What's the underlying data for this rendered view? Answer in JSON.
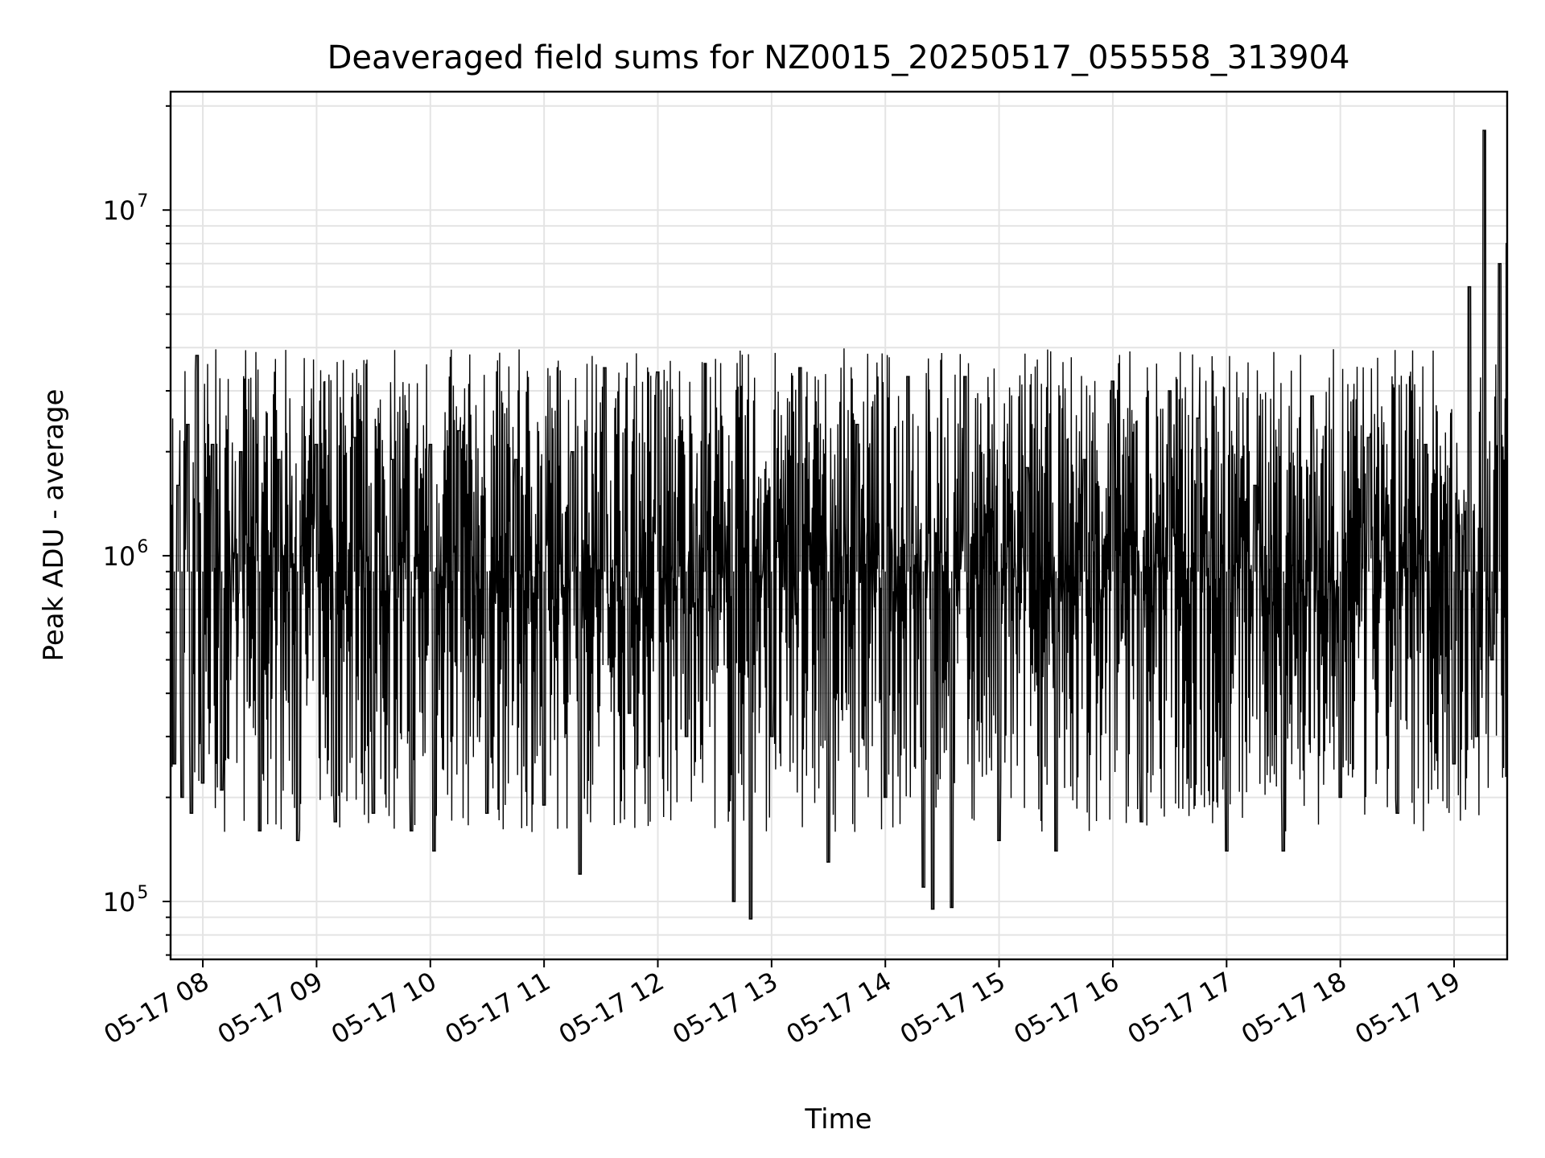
{
  "chart_data": {
    "type": "line",
    "title": "Deaveraged field sums for NZ0015_20250517_055558_313904",
    "xlabel": "Time",
    "ylabel": "Peak ADU - average",
    "y_scale": "log",
    "grid": true,
    "grid_minor": true,
    "line_color": "#000000",
    "xlim": [
      "2025-05-17 07:43",
      "2025-05-17 19:28"
    ],
    "ylim": [
      68000,
      22000000
    ],
    "x_ticks": [
      {
        "value": "2025-05-17 08:00",
        "label": "05-17 08"
      },
      {
        "value": "2025-05-17 09:00",
        "label": "05-17 09"
      },
      {
        "value": "2025-05-17 10:00",
        "label": "05-17 10"
      },
      {
        "value": "2025-05-17 11:00",
        "label": "05-17 11"
      },
      {
        "value": "2025-05-17 12:00",
        "label": "05-17 12"
      },
      {
        "value": "2025-05-17 13:00",
        "label": "05-17 13"
      },
      {
        "value": "2025-05-17 14:00",
        "label": "05-17 14"
      },
      {
        "value": "2025-05-17 15:00",
        "label": "05-17 15"
      },
      {
        "value": "2025-05-17 16:00",
        "label": "05-17 16"
      },
      {
        "value": "2025-05-17 17:00",
        "label": "05-17 17"
      },
      {
        "value": "2025-05-17 18:00",
        "label": "05-17 18"
      },
      {
        "value": "2025-05-17 19:00",
        "label": "05-17 19"
      }
    ],
    "y_ticks": [
      {
        "value": 100000,
        "base": "10",
        "exp": "5"
      },
      {
        "value": 1000000,
        "base": "10",
        "exp": "6"
      },
      {
        "value": 10000000,
        "base": "10",
        "exp": "7"
      }
    ],
    "series": [
      {
        "values": [
          [
            "2025-05-17 07:43",
            1400000
          ],
          [
            "2025-05-17 07:45",
            250000
          ],
          [
            "2025-05-17 07:47",
            1600000
          ],
          [
            "2025-05-17 07:49",
            200000
          ],
          [
            "2025-05-17 07:52",
            2400000
          ],
          [
            "2025-05-17 07:54",
            180000
          ],
          [
            "2025-05-17 07:57",
            3800000
          ],
          [
            "2025-05-17 08:00",
            220000
          ],
          [
            "2025-05-17 08:05",
            2100000
          ],
          [
            "2025-05-17 08:10",
            210000
          ],
          [
            "2025-05-17 08:20",
            2000000
          ],
          [
            "2025-05-17 08:30",
            160000
          ],
          [
            "2025-05-17 08:40",
            1900000
          ],
          [
            "2025-05-17 08:50",
            150000
          ],
          [
            "2025-05-17 09:00",
            2100000
          ],
          [
            "2025-05-17 09:10",
            170000
          ],
          [
            "2025-05-17 09:20",
            2200000
          ],
          [
            "2025-05-17 09:30",
            180000
          ],
          [
            "2025-05-17 09:40",
            1900000
          ],
          [
            "2025-05-17 09:50",
            160000
          ],
          [
            "2025-05-17 10:00",
            2100000
          ],
          [
            "2025-05-17 10:02",
            140000
          ],
          [
            "2025-05-17 10:15",
            2300000
          ],
          [
            "2025-05-17 10:30",
            180000
          ],
          [
            "2025-05-17 10:45",
            1900000
          ],
          [
            "2025-05-17 11:00",
            190000
          ],
          [
            "2025-05-17 11:15",
            2000000
          ],
          [
            "2025-05-17 11:19",
            120000
          ],
          [
            "2025-05-17 11:32",
            3500000
          ],
          [
            "2025-05-17 11:45",
            350000
          ],
          [
            "2025-05-17 12:00",
            3400000
          ],
          [
            "2025-05-17 12:15",
            300000
          ],
          [
            "2025-05-17 12:25",
            3600000
          ],
          [
            "2025-05-17 12:40",
            100000
          ],
          [
            "2025-05-17 12:49",
            89000
          ],
          [
            "2025-05-17 13:00",
            300000
          ],
          [
            "2025-05-17 13:15",
            3500000
          ],
          [
            "2025-05-17 13:30",
            130000
          ],
          [
            "2025-05-17 13:45",
            2400000
          ],
          [
            "2025-05-17 14:00",
            200000
          ],
          [
            "2025-05-17 14:12",
            3300000
          ],
          [
            "2025-05-17 14:20",
            110000
          ],
          [
            "2025-05-17 14:25",
            95000
          ],
          [
            "2025-05-17 14:35",
            96000
          ],
          [
            "2025-05-17 14:42",
            3300000
          ],
          [
            "2025-05-17 15:00",
            150000
          ],
          [
            "2025-05-17 15:15",
            1800000
          ],
          [
            "2025-05-17 15:30",
            140000
          ],
          [
            "2025-05-17 15:45",
            1900000
          ],
          [
            "2025-05-17 16:00",
            3200000
          ],
          [
            "2025-05-17 16:15",
            170000
          ],
          [
            "2025-05-17 16:30",
            3000000
          ],
          [
            "2025-05-17 16:45",
            2500000
          ],
          [
            "2025-05-17 17:00",
            140000
          ],
          [
            "2025-05-17 17:15",
            1600000
          ],
          [
            "2025-05-17 17:30",
            140000
          ],
          [
            "2025-05-17 17:45",
            2900000
          ],
          [
            "2025-05-17 18:00",
            200000
          ],
          [
            "2025-05-17 18:15",
            2200000
          ],
          [
            "2025-05-17 18:30",
            180000
          ],
          [
            "2025-05-17 18:45",
            2100000
          ],
          [
            "2025-05-17 19:00",
            250000
          ],
          [
            "2025-05-17 19:08",
            6000000
          ],
          [
            "2025-05-17 19:12",
            300000
          ],
          [
            "2025-05-17 19:16",
            17000000
          ],
          [
            "2025-05-17 19:20",
            500000
          ],
          [
            "2025-05-17 19:24",
            7000000
          ],
          [
            "2025-05-17 19:28",
            8000000
          ]
        ]
      }
    ]
  }
}
